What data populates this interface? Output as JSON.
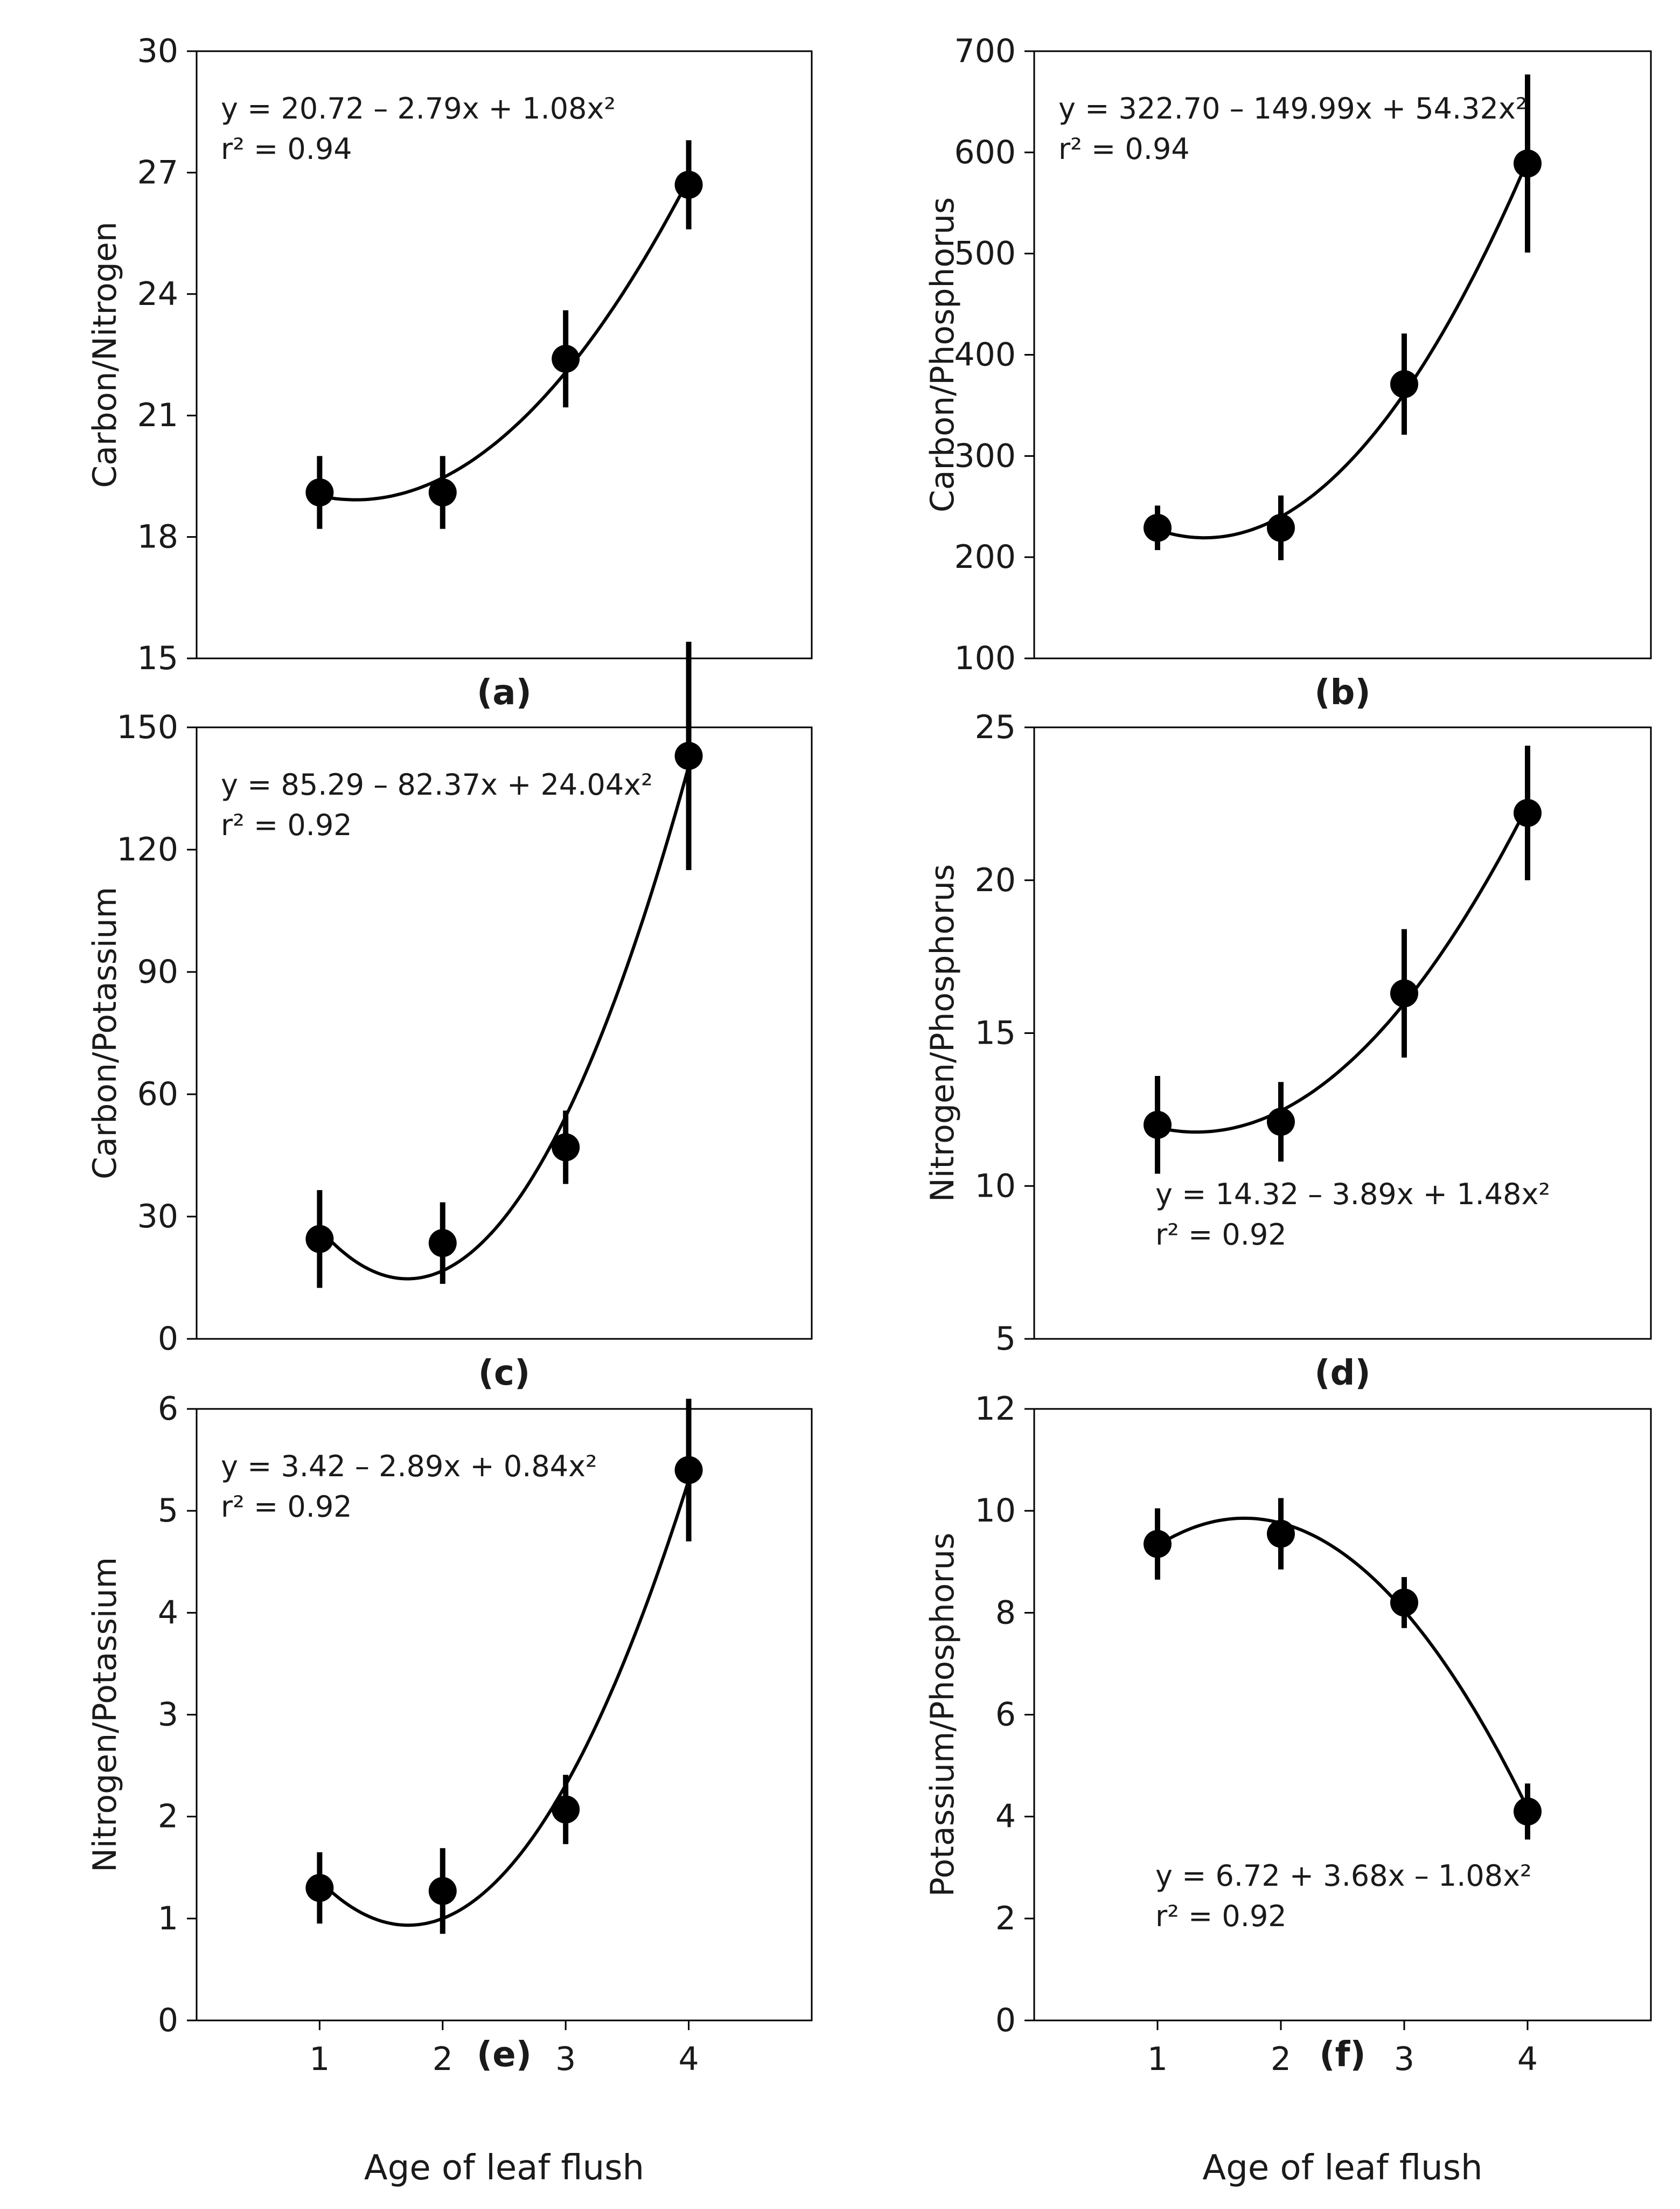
{
  "chart_data": [
    {
      "id": "a",
      "type": "scatter",
      "panel_label": "(a)",
      "title": "",
      "xlabel": "",
      "ylabel": "Carbon/Nitrogen",
      "ylim": [
        15,
        30
      ],
      "yticks": [
        15,
        18,
        21,
        24,
        27,
        30
      ],
      "xlim": [
        0,
        5
      ],
      "xticks": [],
      "show_x_tick_labels": false,
      "x": [
        1,
        2,
        3,
        4
      ],
      "y": [
        19.1,
        19.1,
        22.4,
        26.7
      ],
      "err": [
        0.9,
        0.9,
        1.2,
        1.1
      ],
      "fit_coeffs": [
        20.72,
        -2.79,
        1.08
      ],
      "equation": "y = 20.72 – 2.79x + 1.08x²",
      "r2": "r² = 0.94",
      "equation_position": "top-left",
      "grid": false,
      "legend": "none"
    },
    {
      "id": "b",
      "type": "scatter",
      "panel_label": "(b)",
      "title": "",
      "xlabel": "",
      "ylabel": "Carbon/Phosphorus",
      "ylim": [
        100,
        700
      ],
      "yticks": [
        100,
        200,
        300,
        400,
        500,
        600,
        700
      ],
      "xlim": [
        0,
        5
      ],
      "xticks": [],
      "show_x_tick_labels": false,
      "x": [
        1,
        2,
        3,
        4
      ],
      "y": [
        229,
        229,
        371,
        589
      ],
      "err": [
        22,
        32,
        50,
        88
      ],
      "fit_coeffs": [
        322.7,
        -149.99,
        54.32
      ],
      "equation": "y = 322.70 – 149.99x + 54.32x²",
      "r2": "r² = 0.94",
      "equation_position": "top-left",
      "grid": false,
      "legend": "none"
    },
    {
      "id": "c",
      "type": "scatter",
      "panel_label": "(c)",
      "title": "",
      "xlabel": "",
      "ylabel": "Carbon/Potassium",
      "ylim": [
        0,
        150
      ],
      "yticks": [
        0,
        30,
        60,
        90,
        120,
        150
      ],
      "xlim": [
        0,
        5
      ],
      "xticks": [],
      "show_x_tick_labels": false,
      "x": [
        1,
        2,
        3,
        4
      ],
      "y": [
        24.5,
        23.5,
        47,
        143
      ],
      "err": [
        12,
        10,
        9,
        28
      ],
      "fit_coeffs": [
        85.29,
        -82.37,
        24.04
      ],
      "equation": "y = 85.29 – 82.37x + 24.04x²",
      "r2": "r² = 0.92",
      "equation_position": "top-left",
      "grid": false,
      "legend": "none"
    },
    {
      "id": "d",
      "type": "scatter",
      "panel_label": "(d)",
      "title": "",
      "xlabel": "",
      "ylabel": "Nitrogen/Phosphorus",
      "ylim": [
        5,
        25
      ],
      "yticks": [
        5,
        10,
        15,
        20,
        25
      ],
      "xlim": [
        0,
        5
      ],
      "xticks": [],
      "show_x_tick_labels": false,
      "x": [
        1,
        2,
        3,
        4
      ],
      "y": [
        12.0,
        12.1,
        16.3,
        22.2
      ],
      "err": [
        1.6,
        1.3,
        2.1,
        2.2
      ],
      "fit_coeffs": [
        14.32,
        -3.89,
        1.48
      ],
      "equation": "y = 14.32 – 3.89x + 1.48x²",
      "r2": "r² = 0.92",
      "equation_position": "bottom-center",
      "grid": false,
      "legend": "none"
    },
    {
      "id": "e",
      "type": "scatter",
      "panel_label": "(e)",
      "title": "",
      "xlabel": "Age of leaf flush",
      "ylabel": "Nitrogen/Potassium",
      "ylim": [
        0,
        6
      ],
      "yticks": [
        0,
        1,
        2,
        3,
        4,
        5,
        6
      ],
      "xlim": [
        0,
        5
      ],
      "xticks": [
        1,
        2,
        3,
        4
      ],
      "show_x_tick_labels": true,
      "x": [
        1,
        2,
        3,
        4
      ],
      "y": [
        1.3,
        1.27,
        2.07,
        5.4
      ],
      "err": [
        0.35,
        0.42,
        0.34,
        0.7
      ],
      "fit_coeffs": [
        3.42,
        -2.89,
        0.84
      ],
      "equation": "y = 3.42 – 2.89x + 0.84x²",
      "r2": "r² = 0.92",
      "equation_position": "top-left",
      "grid": false,
      "legend": "none"
    },
    {
      "id": "f",
      "type": "scatter",
      "panel_label": "(f)",
      "title": "",
      "xlabel": "Age of leaf flush",
      "ylabel": "Potassium/Phosphorus",
      "ylim": [
        0,
        12
      ],
      "yticks": [
        0,
        2,
        4,
        6,
        8,
        10,
        12
      ],
      "xlim": [
        0,
        5
      ],
      "xticks": [
        1,
        2,
        3,
        4
      ],
      "show_x_tick_labels": true,
      "x": [
        1,
        2,
        3,
        4
      ],
      "y": [
        9.35,
        9.55,
        8.2,
        4.1
      ],
      "err": [
        0.7,
        0.7,
        0.5,
        0.55
      ],
      "fit_coeffs": [
        6.72,
        3.68,
        -1.08
      ],
      "equation": "y = 6.72 + 3.68x – 1.08x²",
      "r2": "r² = 0.92",
      "equation_position": "bottom-center",
      "grid": false,
      "legend": "none"
    }
  ]
}
